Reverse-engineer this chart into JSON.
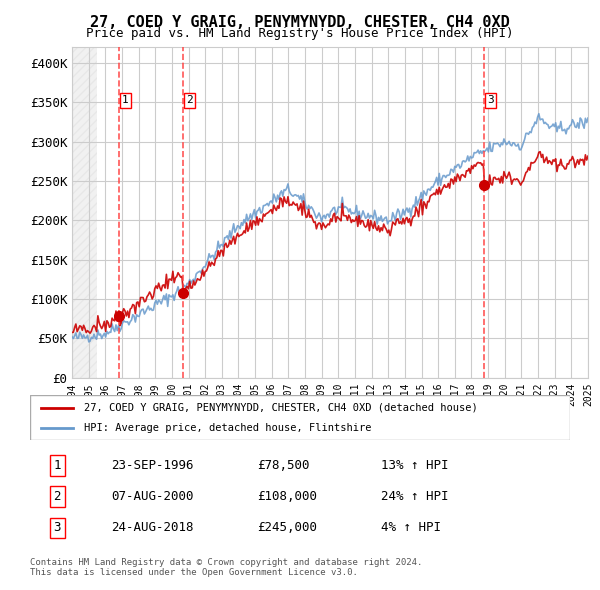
{
  "title": "27, COED Y GRAIG, PENYMYNYDD, CHESTER, CH4 0XD",
  "subtitle": "Price paid vs. HM Land Registry's House Price Index (HPI)",
  "ylabel": "",
  "ylim": [
    0,
    420000
  ],
  "yticks": [
    0,
    50000,
    100000,
    150000,
    200000,
    250000,
    300000,
    350000,
    400000
  ],
  "ytick_labels": [
    "£0",
    "£50K",
    "£100K",
    "£150K",
    "£200K",
    "£250K",
    "£300K",
    "£350K",
    "£400K"
  ],
  "transactions": [
    {
      "date": "1996-09-23",
      "price": 78500,
      "label": "1",
      "pct": "13%"
    },
    {
      "date": "2000-08-07",
      "price": 108000,
      "label": "2",
      "pct": "24%"
    },
    {
      "date": "2018-08-24",
      "price": 245000,
      "label": "3",
      "pct": "4%"
    }
  ],
  "legend_entries": [
    "27, COED Y GRAIG, PENYMYNYDD, CHESTER, CH4 0XD (detached house)",
    "HPI: Average price, detached house, Flintshire"
  ],
  "table_rows": [
    [
      "1",
      "23-SEP-1996",
      "£78,500",
      "13% ↑ HPI"
    ],
    [
      "2",
      "07-AUG-2000",
      "£108,000",
      "24% ↑ HPI"
    ],
    [
      "3",
      "24-AUG-2018",
      "£245,000",
      "4% ↑ HPI"
    ]
  ],
  "footer": "Contains HM Land Registry data © Crown copyright and database right 2024.\nThis data is licensed under the Open Government Licence v3.0.",
  "line_color_red": "#cc0000",
  "line_color_blue": "#6699cc",
  "hatch_color": "#cccccc",
  "grid_color": "#cccccc",
  "background_hatch": "////",
  "dashed_line_color": "#ff4444",
  "marker_color": "#cc0000",
  "x_start_year": 1994,
  "x_end_year": 2025
}
